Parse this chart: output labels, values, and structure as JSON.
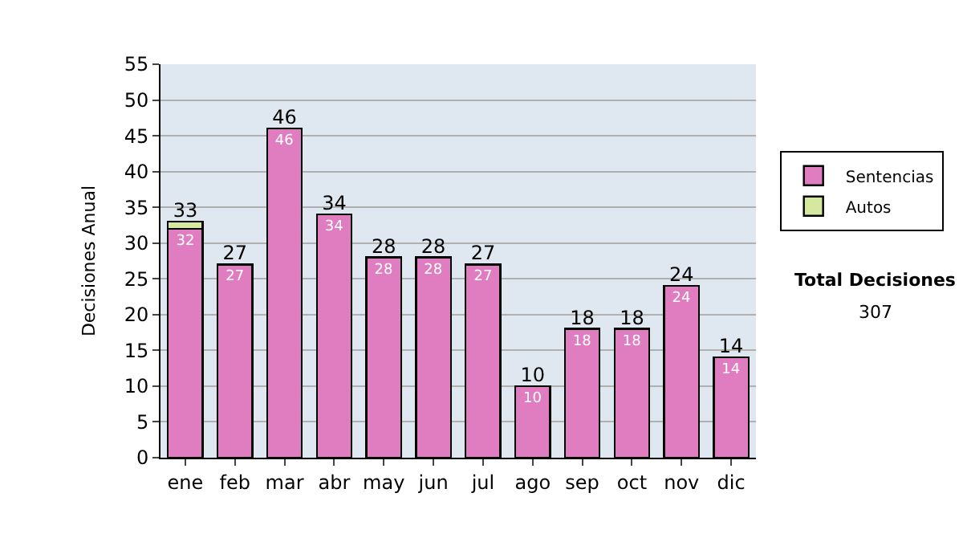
{
  "chart_data": {
    "type": "bar",
    "stacked": true,
    "ylabel": "Decisiones Anual",
    "categories": [
      "ene",
      "feb",
      "mar",
      "abr",
      "may",
      "jun",
      "jul",
      "ago",
      "sep",
      "oct",
      "nov",
      "dic"
    ],
    "series": [
      {
        "name": "Sentencias",
        "color": "#e07dc0",
        "values": [
          32,
          27,
          46,
          34,
          28,
          28,
          27,
          10,
          18,
          18,
          24,
          14
        ],
        "value_labels": [
          "32",
          "27",
          "46",
          "34",
          "28",
          "28",
          "27",
          "10",
          "18",
          "18",
          "24",
          "14"
        ]
      },
      {
        "name": "Autos",
        "color": "#d4e8a0",
        "values": [
          1,
          null,
          null,
          null,
          null,
          null,
          null,
          null,
          null,
          null,
          null,
          null
        ]
      }
    ],
    "totals": [
      "33",
      "27",
      "46",
      "34",
      "28",
      "28",
      "27",
      "10",
      "18",
      "18",
      "24",
      "14"
    ],
    "ylim": [
      0,
      55
    ],
    "yticks": [
      0,
      5,
      10,
      15,
      20,
      25,
      30,
      35,
      40,
      45,
      50,
      55
    ],
    "grid": "y",
    "legend": "right",
    "annotations": [
      "Total Decisiones",
      "307"
    ]
  }
}
